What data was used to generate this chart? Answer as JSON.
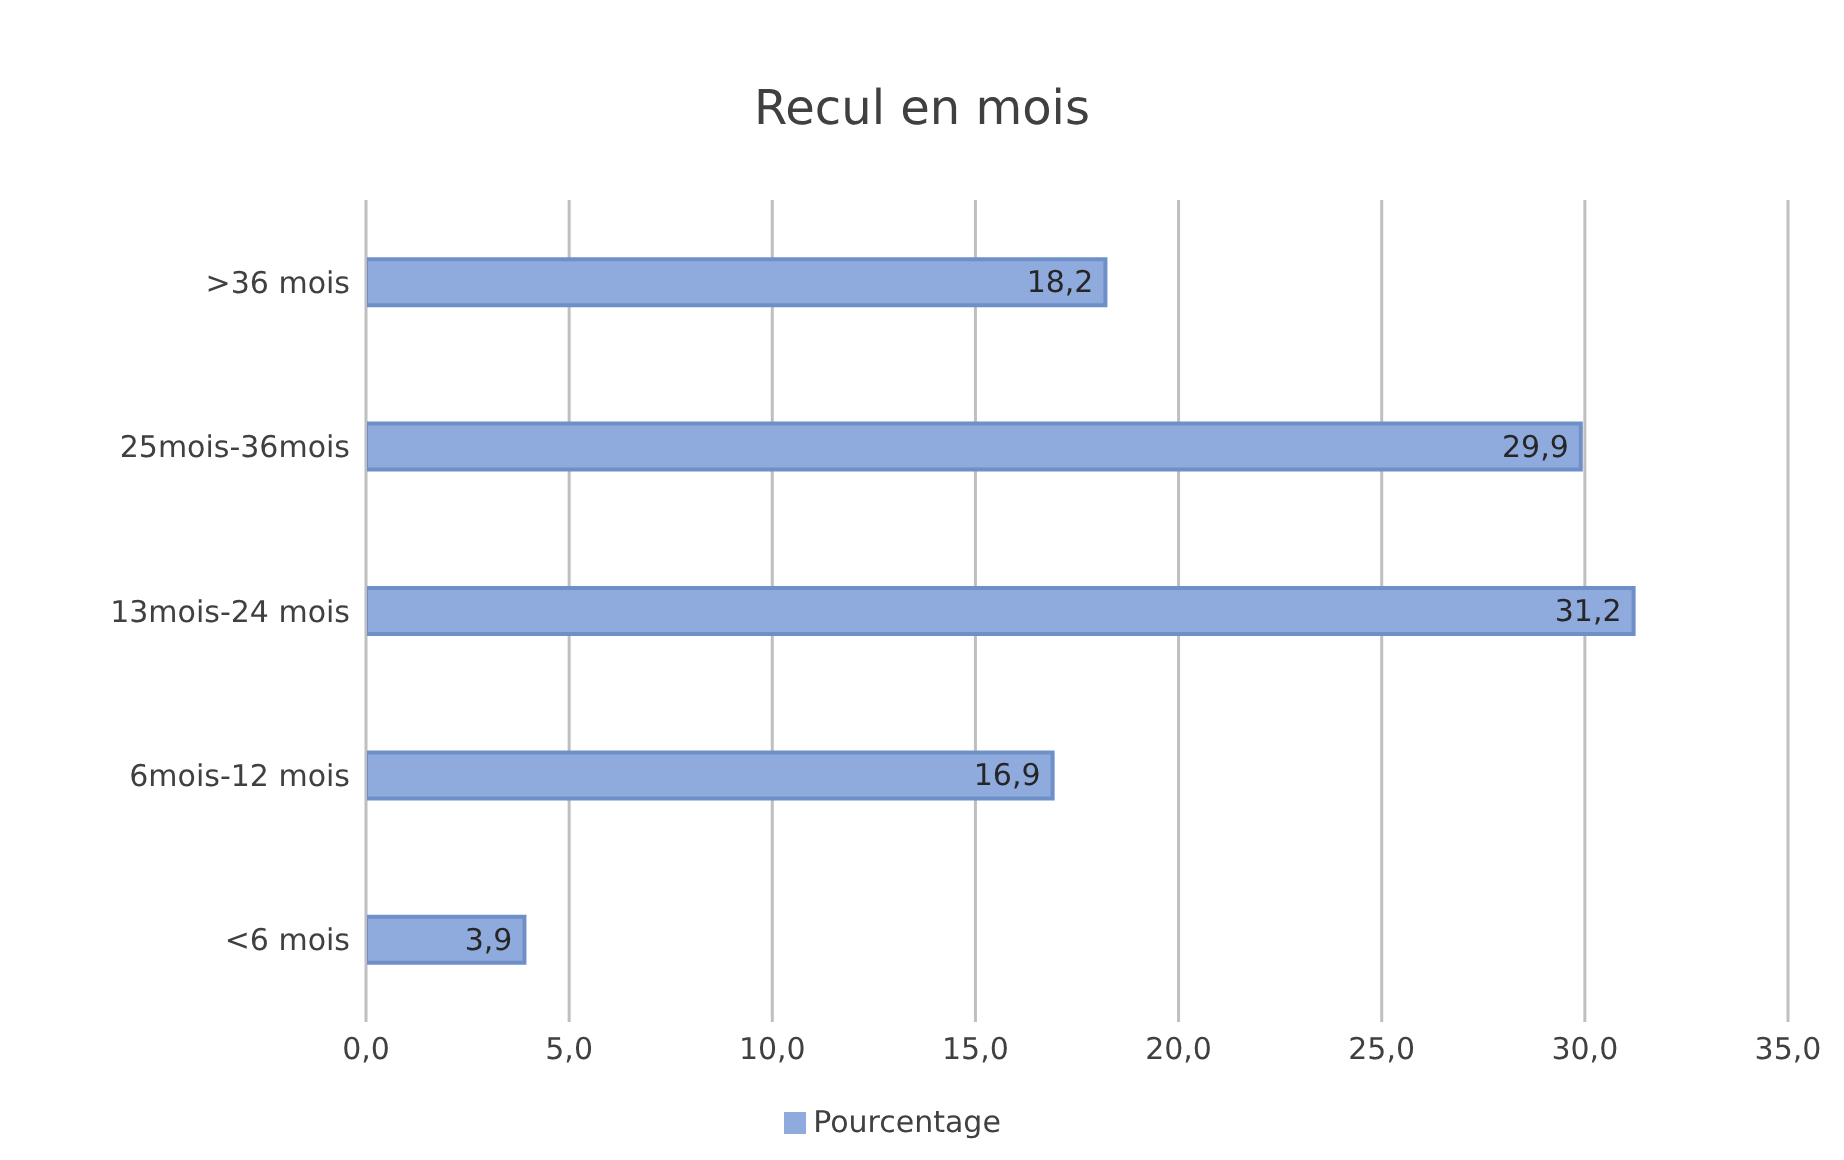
{
  "chart_data": {
    "type": "bar",
    "orientation": "horizontal",
    "title": "Recul en mois",
    "categories": [
      ">36 mois",
      "25mois-36mois",
      "13mois-24 mois",
      "6mois-12 mois",
      "<6 mois"
    ],
    "series": [
      {
        "name": "Pourcentage",
        "color": "#8faadc",
        "values": [
          18.2,
          29.9,
          31.2,
          16.9,
          3.9
        ],
        "value_labels": [
          "18,2",
          "29,9",
          "31,2",
          "16,9",
          "3,9"
        ]
      }
    ],
    "xlim": [
      0,
      35
    ],
    "xticks": [
      {
        "value": 0,
        "label": "0,0"
      },
      {
        "value": 5,
        "label": "5,0"
      },
      {
        "value": 10,
        "label": "10,0"
      },
      {
        "value": 15,
        "label": "15,0"
      },
      {
        "value": 20,
        "label": "20,0"
      },
      {
        "value": 25,
        "label": "25,0"
      },
      {
        "value": 30,
        "label": "30,0"
      },
      {
        "value": 35,
        "label": "35,0"
      }
    ],
    "grid": "x",
    "legend": "bottom"
  }
}
